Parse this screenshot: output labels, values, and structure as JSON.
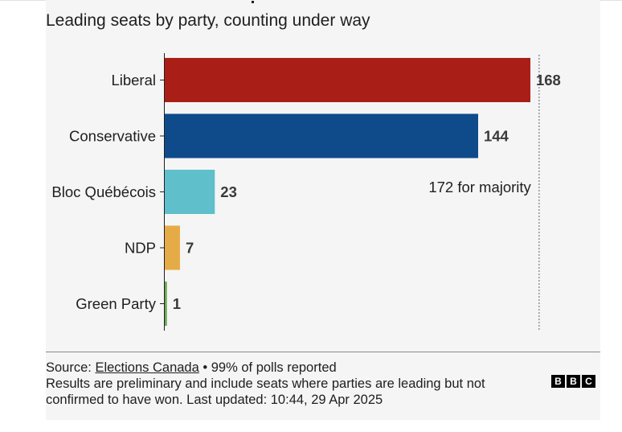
{
  "title": "Leading seats by party, counting under way",
  "chart_data": {
    "type": "bar",
    "orientation": "horizontal",
    "categories": [
      "Liberal",
      "Conservative",
      "Bloc Québécois",
      "NDP",
      "Green Party"
    ],
    "values": [
      168,
      144,
      23,
      7,
      1
    ],
    "colors": [
      "#a91f17",
      "#0f4b8a",
      "#5fbfcb",
      "#e5ab47",
      "#6aa84f"
    ],
    "xlim": [
      0,
      172
    ],
    "reference_line": {
      "value": 172,
      "label": "172 for majority",
      "style": "dotted"
    },
    "data_labels": true,
    "grid": false
  },
  "footer": {
    "source_prefix": "Source: ",
    "source_link": "Elections Canada",
    "source_suffix": " • 99% of polls reported",
    "note": "Results are preliminary and include seats where parties are leading but not confirmed to have won. Last updated: 10:44, 29 Apr 2025"
  },
  "logo": [
    "B",
    "B",
    "C"
  ]
}
